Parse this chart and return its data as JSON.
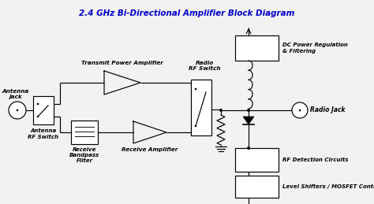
{
  "title": "2.4 GHz Bi-Directional Amplifier Block Diagram",
  "title_color": "#0000cc",
  "bg_color": "#f2f2f2",
  "lc": "#000000",
  "labels": {
    "antenna_jack": "Antenna\nJack",
    "antenna_switch": "Antenna\nRF Switch",
    "transmit_amp": "Transmit Power Amplifier",
    "bandpass": "Receive\nBandpass\nFilter",
    "receive_amp": "Receive Amplifier",
    "radio_switch": "Radio\nRF Switch",
    "dc_power": "DC Power Regulation\n& Filtering",
    "radio_jack": "Radio Jack",
    "rf_detect": "RF Detection Circuits",
    "level_shift": "Level Shifters / MOSFET Contro."
  }
}
